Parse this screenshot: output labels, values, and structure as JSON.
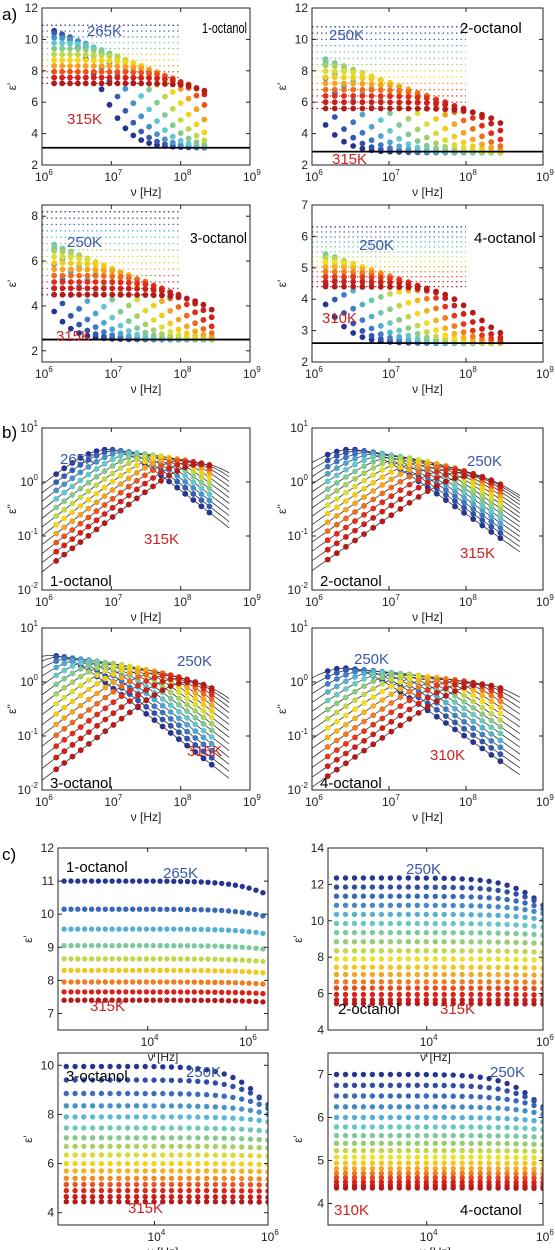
{
  "sections": [
    "a)",
    "b)",
    "c)"
  ],
  "colors": {
    "cold": "#26358f",
    "cool": "#3b6fc0",
    "cyan": "#5cc6d8",
    "green": "#8fcb7a",
    "yellow": "#f2e21a",
    "orange": "#f39a22",
    "red": "#e2231a",
    "darkred": "#b31b1b",
    "label_cold": "#3a57a8",
    "label_hot": "#cc2222"
  },
  "chart_data": [
    {
      "id": "a1",
      "section": "a)",
      "type": "scatter",
      "sample": "1-octanol",
      "xlabel": "ν [Hz]",
      "ylabel": "ε'",
      "xscale": "log",
      "xlim": [
        1000000.0,
        1000000000.0
      ],
      "yscale": "linear",
      "ylim": [
        2,
        12
      ],
      "xticks": [
        {
          "v": 1000000.0,
          "l": "10",
          "e": "6"
        },
        {
          "v": 10000000.0,
          "l": "10",
          "e": "7"
        },
        {
          "v": 100000000.0,
          "l": "10",
          "e": "8"
        },
        {
          "v": 1000000000.0,
          "l": "10",
          "e": "9"
        }
      ],
      "yticks": [
        {
          "v": 2,
          "l": "2"
        },
        {
          "v": 4,
          "l": "4"
        },
        {
          "v": 6,
          "l": "6"
        },
        {
          "v": 8,
          "l": "8"
        },
        {
          "v": 10,
          "l": "10"
        },
        {
          "v": 12,
          "l": "12"
        }
      ],
      "t_hot": "315K",
      "t_cold": "265K",
      "kind": "debye",
      "eps_s": [
        10.9,
        7.2
      ],
      "eps_inf": 3.1,
      "tau": [
        2.3e-08,
        2.6e-10
      ],
      "n": 11,
      "f_end": 220000000.0,
      "hline": 3.1,
      "dotted_to": 100000000.0
    },
    {
      "id": "a2",
      "section": "a)",
      "type": "scatter",
      "sample": "2-octanol",
      "xlabel": "ν [Hz]",
      "ylabel": "ε'",
      "xscale": "log",
      "xlim": [
        1000000.0,
        1000000000.0
      ],
      "yscale": "linear",
      "ylim": [
        2,
        12
      ],
      "xticks": [
        {
          "v": 1000000.0,
          "l": "10",
          "e": "6"
        },
        {
          "v": 10000000.0,
          "l": "10",
          "e": "7"
        },
        {
          "v": 100000000.0,
          "l": "10",
          "e": "8"
        },
        {
          "v": 1000000000.0,
          "l": "10",
          "e": "9"
        }
      ],
      "yticks": [
        {
          "v": 2,
          "l": "2"
        },
        {
          "v": 4,
          "l": "4"
        },
        {
          "v": 6,
          "l": "6"
        },
        {
          "v": 8,
          "l": "8"
        },
        {
          "v": 10,
          "l": "10"
        },
        {
          "v": 12,
          "l": "12"
        }
      ],
      "t_hot": "315K",
      "t_cold": "250K",
      "kind": "debye",
      "eps_s": [
        10.8,
        5.6
      ],
      "eps_inf": 2.8,
      "tau": [
        2e-07,
        4e-10
      ],
      "n": 14,
      "f_end": 280000000.0,
      "hline": 2.85,
      "dotted_to": 100000000.0
    },
    {
      "id": "a3",
      "section": "a)",
      "type": "scatter",
      "sample": "3-octanol",
      "xlabel": "ν [Hz]",
      "ylabel": "ε'",
      "xscale": "log",
      "xlim": [
        1000000.0,
        1000000000.0
      ],
      "yscale": "linear",
      "ylim": [
        1.5,
        8.5
      ],
      "xticks": [
        {
          "v": 1000000.0,
          "l": "10",
          "e": "6"
        },
        {
          "v": 10000000.0,
          "l": "10",
          "e": "7"
        },
        {
          "v": 100000000.0,
          "l": "10",
          "e": "8"
        },
        {
          "v": 1000000000.0,
          "l": "10",
          "e": "9"
        }
      ],
      "yticks": [
        {
          "v": 2,
          "l": "2"
        },
        {
          "v": 4,
          "l": "4"
        },
        {
          "v": 6,
          "l": "6"
        },
        {
          "v": 8,
          "l": "8"
        }
      ],
      "t_hot": "315K",
      "t_cold": "250K",
      "kind": "debye",
      "eps_s": [
        8.2,
        4.5
      ],
      "eps_inf": 2.5,
      "tau": [
        2e-07,
        4e-10
      ],
      "n": 14,
      "f_end": 280000000.0,
      "hline": 2.5,
      "dotted_to": 100000000.0
    },
    {
      "id": "a4",
      "section": "a)",
      "type": "scatter",
      "sample": "4-octanol",
      "xlabel": "ν [Hz]",
      "ylabel": "ε'",
      "xscale": "log",
      "xlim": [
        1000000.0,
        1000000000.0
      ],
      "yscale": "linear",
      "ylim": [
        2,
        7
      ],
      "xticks": [
        {
          "v": 1000000.0,
          "l": "10",
          "e": "6"
        },
        {
          "v": 10000000.0,
          "l": "10",
          "e": "7"
        },
        {
          "v": 100000000.0,
          "l": "10",
          "e": "8"
        },
        {
          "v": 1000000000.0,
          "l": "10",
          "e": "9"
        }
      ],
      "yticks": [
        {
          "v": 2,
          "l": "2"
        },
        {
          "v": 3,
          "l": "3"
        },
        {
          "v": 4,
          "l": "4"
        },
        {
          "v": 5,
          "l": "5"
        },
        {
          "v": 6,
          "l": "6"
        },
        {
          "v": 7,
          "l": "7"
        }
      ],
      "t_hot": "310K",
      "t_cold": "250K",
      "kind": "debye",
      "eps_s": [
        6.3,
        4.4
      ],
      "eps_inf": 2.6,
      "tau": [
        1.5e-07,
        1.2e-09
      ],
      "n": 13,
      "f_end": 280000000.0,
      "hline": 2.6,
      "dotted_to": 100000000.0
    },
    {
      "id": "b1",
      "section": "b)",
      "type": "scatter",
      "sample": "1-octanol",
      "xlabel": "ν [Hz]",
      "ylabel": "ε''",
      "xscale": "log",
      "xlim": [
        1000000.0,
        1000000000.0
      ],
      "yscale": "log",
      "ylim": [
        0.01,
        10
      ],
      "xticks": [
        {
          "v": 1000000.0,
          "l": "10",
          "e": "6"
        },
        {
          "v": 10000000.0,
          "l": "10",
          "e": "7"
        },
        {
          "v": 100000000.0,
          "l": "10",
          "e": "8"
        },
        {
          "v": 1000000000.0,
          "l": "10",
          "e": "9"
        }
      ],
      "yticks": [
        {
          "v": 0.01,
          "l": "10",
          "e": "-2"
        },
        {
          "v": 0.1,
          "l": "10",
          "e": "-1"
        },
        {
          "v": 1,
          "l": "10",
          "e": "0"
        },
        {
          "v": 10,
          "l": "10",
          "e": "1"
        }
      ],
      "t_hot": "315K",
      "t_cold": "265K",
      "kind": "loss",
      "delta": [
        8.0,
        4.3
      ],
      "tau": [
        1.8e-08,
        8e-10
      ],
      "n": 11,
      "f_end": 260000000.0,
      "fit_to": 500000000.0
    },
    {
      "id": "b2",
      "section": "b)",
      "type": "scatter",
      "sample": "2-octanol",
      "xlabel": "ν [Hz]",
      "ylabel": "ε''",
      "xscale": "log",
      "xlim": [
        1000000.0,
        1000000000.0
      ],
      "yscale": "log",
      "ylim": [
        0.01,
        10
      ],
      "xticks": [
        {
          "v": 1000000.0,
          "l": "10",
          "e": "6"
        },
        {
          "v": 10000000.0,
          "l": "10",
          "e": "7"
        },
        {
          "v": 100000000.0,
          "l": "10",
          "e": "8"
        },
        {
          "v": 1000000000.0,
          "l": "10",
          "e": "9"
        }
      ],
      "yticks": [
        {
          "v": 0.01,
          "l": "10",
          "e": "-2"
        },
        {
          "v": 0.1,
          "l": "10",
          "e": "-1"
        },
        {
          "v": 1,
          "l": "10",
          "e": "0"
        },
        {
          "v": 10,
          "l": "10",
          "e": "1"
        }
      ],
      "t_hot": "315K",
      "t_cold": "250K",
      "kind": "loss",
      "delta": [
        8.0,
        2.6
      ],
      "tau": [
        5e-08,
        1.4e-09
      ],
      "n": 14,
      "f_end": 280000000.0,
      "fit_to": 500000000.0
    },
    {
      "id": "b3",
      "section": "b)",
      "type": "scatter",
      "sample": "3-octanol",
      "xlabel": "ν [Hz]",
      "ylabel": "ε''",
      "xscale": "log",
      "xlim": [
        1000000.0,
        1000000000.0
      ],
      "yscale": "log",
      "ylim": [
        0.01,
        10
      ],
      "xticks": [
        {
          "v": 1000000.0,
          "l": "10",
          "e": "6"
        },
        {
          "v": 10000000.0,
          "l": "10",
          "e": "7"
        },
        {
          "v": 100000000.0,
          "l": "10",
          "e": "8"
        },
        {
          "v": 1000000000.0,
          "l": "10",
          "e": "9"
        }
      ],
      "yticks": [
        {
          "v": 0.01,
          "l": "10",
          "e": "-2"
        },
        {
          "v": 0.1,
          "l": "10",
          "e": "-1"
        },
        {
          "v": 1,
          "l": "10",
          "e": "0"
        },
        {
          "v": 10,
          "l": "10",
          "e": "1"
        }
      ],
      "t_hot": "315K",
      "t_cold": "250K",
      "kind": "loss",
      "delta": [
        6.2,
        2.0
      ],
      "tau": [
        1.2e-07,
        1.2e-09
      ],
      "n": 14,
      "f_end": 280000000.0,
      "fit_to": 500000000.0
    },
    {
      "id": "b4",
      "section": "b)",
      "type": "scatter",
      "sample": "4-octanol",
      "xlabel": "ν [Hz]",
      "ylabel": "ε''",
      "xscale": "log",
      "xlim": [
        1000000.0,
        1000000000.0
      ],
      "yscale": "log",
      "ylim": [
        0.01,
        10
      ],
      "xticks": [
        {
          "v": 1000000.0,
          "l": "10",
          "e": "6"
        },
        {
          "v": 10000000.0,
          "l": "10",
          "e": "7"
        },
        {
          "v": 100000000.0,
          "l": "10",
          "e": "8"
        },
        {
          "v": 1000000000.0,
          "l": "10",
          "e": "9"
        }
      ],
      "yticks": [
        {
          "v": 0.01,
          "l": "10",
          "e": "-2"
        },
        {
          "v": 0.1,
          "l": "10",
          "e": "-1"
        },
        {
          "v": 1,
          "l": "10",
          "e": "0"
        },
        {
          "v": 10,
          "l": "10",
          "e": "1"
        }
      ],
      "t_hot": "310K",
      "t_cold": "250K",
      "kind": "loss",
      "delta": [
        3.6,
        1.8
      ],
      "tau": [
        6e-08,
        1e-09
      ],
      "n": 13,
      "f_end": 280000000.0,
      "fit_to": 500000000.0
    },
    {
      "id": "c1",
      "section": "c)",
      "type": "scatter",
      "sample": "1-octanol",
      "xlabel": "ν [Hz]",
      "ylabel": "ε'",
      "xscale": "log",
      "xlim": [
        150,
        2800000.0
      ],
      "yscale": "linear",
      "ylim": [
        6.5,
        12
      ],
      "xticks": [
        {
          "v": 10000.0,
          "l": "10",
          "e": "4"
        },
        {
          "v": 1000000.0,
          "l": "10",
          "e": "6"
        }
      ],
      "yticks": [
        {
          "v": 7,
          "l": "7"
        },
        {
          "v": 8,
          "l": "8"
        },
        {
          "v": 9,
          "l": "9"
        },
        {
          "v": 10,
          "l": "10"
        },
        {
          "v": 11,
          "l": "11"
        },
        {
          "v": 12,
          "l": "12"
        }
      ],
      "t_hot": "315K",
      "t_cold": "265K",
      "kind": "static",
      "levels": [
        11.0,
        10.15,
        9.55,
        9.05,
        8.65,
        8.3,
        7.95,
        7.65,
        7.4
      ],
      "drop": [
        0.35,
        0.2,
        0.13,
        0.1,
        0.08,
        0.07,
        0.06,
        0.05,
        0.05
      ],
      "n_pts": 30,
      "f_start": 200,
      "f_end": 2200000.0
    },
    {
      "id": "c2",
      "section": "c)",
      "type": "scatter",
      "sample": "2-octanol",
      "xlabel": "ν [Hz]",
      "ylabel": "ε'",
      "xscale": "log",
      "xlim": [
        200,
        1000000.0
      ],
      "yscale": "linear",
      "ylim": [
        4,
        14
      ],
      "xticks": [
        {
          "v": 10000.0,
          "l": "10",
          "e": "4"
        },
        {
          "v": 1000000.0,
          "l": "10",
          "e": "6"
        }
      ],
      "yticks": [
        {
          "v": 4,
          "l": "4"
        },
        {
          "v": 6,
          "l": "6"
        },
        {
          "v": 8,
          "l": "8"
        },
        {
          "v": 10,
          "l": "10"
        },
        {
          "v": 12,
          "l": "12"
        },
        {
          "v": 14,
          "l": "14"
        }
      ],
      "t_hot": "315K",
      "t_cold": "250K",
      "kind": "static",
      "levels": [
        12.35,
        11.85,
        11.35,
        10.85,
        10.35,
        9.85,
        9.35,
        8.85,
        8.35,
        7.9,
        7.45,
        7.05,
        6.65,
        6.3,
        5.95,
        5.65,
        5.45
      ],
      "drop": [
        1.5,
        1.0,
        0.7,
        0.45,
        0.3,
        0.2,
        0.14,
        0.1,
        0.08,
        0.06,
        0.05,
        0.04,
        0.03,
        0.03,
        0.02,
        0.02,
        0.02
      ],
      "n_pts": 24,
      "f_start": 280,
      "f_end": 1000000.0
    },
    {
      "id": "c3",
      "section": "c)",
      "type": "scatter",
      "sample": "3-octanol",
      "xlabel": "ν [Hz]",
      "ylabel": "ε'",
      "xscale": "log",
      "xlim": [
        200,
        1000000.0
      ],
      "yscale": "linear",
      "ylim": [
        3.5,
        10.5
      ],
      "xticks": [
        {
          "v": 10000.0,
          "l": "10",
          "e": "4"
        },
        {
          "v": 1000000.0,
          "l": "10",
          "e": "6"
        }
      ],
      "yticks": [
        {
          "v": 4,
          "l": "4"
        },
        {
          "v": 6,
          "l": "6"
        },
        {
          "v": 8,
          "l": "8"
        },
        {
          "v": 10,
          "l": "10"
        }
      ],
      "t_hot": "315K",
      "t_cold": "250K",
      "kind": "static",
      "levels": [
        9.95,
        9.4,
        8.85,
        8.35,
        7.9,
        7.45,
        7.05,
        6.7,
        6.35,
        6.0,
        5.7,
        5.4,
        5.15,
        4.9,
        4.65,
        4.45
      ],
      "drop": [
        1.7,
        1.0,
        0.6,
        0.35,
        0.2,
        0.14,
        0.1,
        0.07,
        0.05,
        0.04,
        0.03,
        0.03,
        0.02,
        0.02,
        0.02,
        0.02
      ],
      "n_pts": 24,
      "f_start": 280,
      "f_end": 1000000.0
    },
    {
      "id": "c4",
      "section": "c)",
      "type": "scatter",
      "sample": "4-octanol",
      "xlabel": "ν [Hz]",
      "ylabel": "ε'",
      "xscale": "log",
      "xlim": [
        200,
        1000000.0
      ],
      "yscale": "linear",
      "ylim": [
        3.5,
        7.5
      ],
      "xticks": [
        {
          "v": 10000.0,
          "l": "10",
          "e": "4"
        },
        {
          "v": 1000000.0,
          "l": "10",
          "e": "6"
        }
      ],
      "yticks": [
        {
          "v": 4,
          "l": "4"
        },
        {
          "v": 5,
          "l": "5"
        },
        {
          "v": 6,
          "l": "6"
        },
        {
          "v": 7,
          "l": "7"
        }
      ],
      "t_hot": "310K",
      "t_cold": "250K",
      "kind": "static",
      "levels": [
        7.0,
        6.75,
        6.5,
        6.25,
        6.0,
        5.78,
        5.58,
        5.4,
        5.23,
        5.08,
        4.94,
        4.81,
        4.7,
        4.6,
        4.5,
        4.42,
        4.36
      ],
      "drop": [
        0.8,
        0.5,
        0.3,
        0.18,
        0.1,
        0.06,
        0.04,
        0.03,
        0.02,
        0.02,
        0.01,
        0.01,
        0.01,
        0.01,
        0.01,
        0.01,
        0.01
      ],
      "n_pts": 24,
      "f_start": 280,
      "f_end": 1000000.0
    }
  ]
}
